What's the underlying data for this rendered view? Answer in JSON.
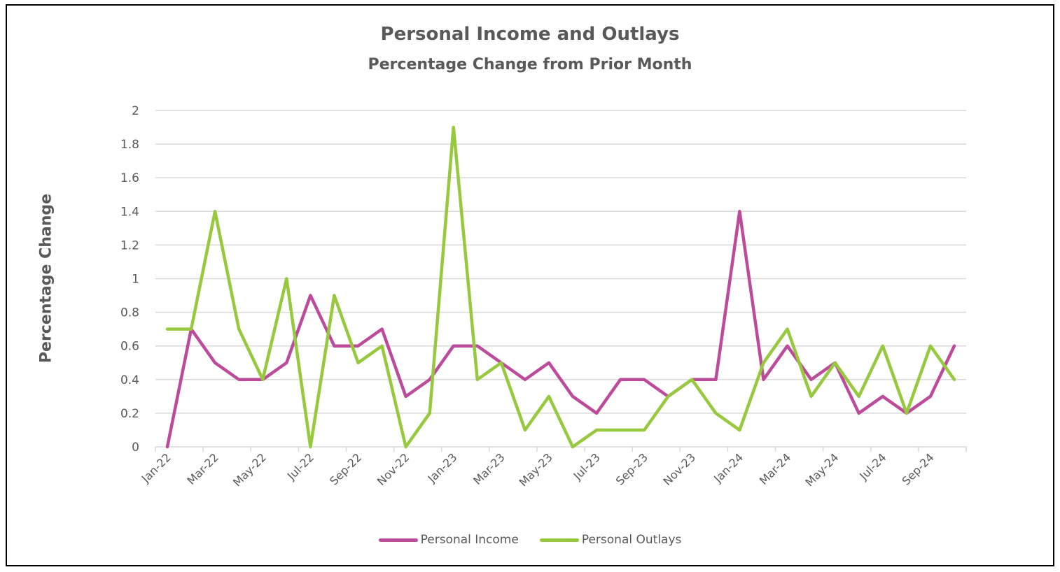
{
  "chart_data": {
    "type": "line",
    "title": "Personal Income and Outlays",
    "subtitle": "Percentage Change from Prior Month",
    "xlabel": "",
    "ylabel": "Percentage Change",
    "ylim": [
      0,
      2
    ],
    "yticks": [
      "0",
      "0.2",
      "0.4",
      "0.6",
      "0.8",
      "1",
      "1.2",
      "1.4",
      "1.6",
      "1.8",
      "2"
    ],
    "grid": true,
    "legend_position": "bottom",
    "categories": [
      "Jan-22",
      "Feb-22",
      "Mar-22",
      "Apr-22",
      "May-22",
      "Jun-22",
      "Jul-22",
      "Aug-22",
      "Sep-22",
      "Oct-22",
      "Nov-22",
      "Dec-22",
      "Jan-23",
      "Feb-23",
      "Mar-23",
      "Apr-23",
      "May-23",
      "Jun-23",
      "Jul-23",
      "Aug-23",
      "Sep-23",
      "Oct-23",
      "Nov-23",
      "Dec-23",
      "Jan-24",
      "Feb-24",
      "Mar-24",
      "Apr-24",
      "May-24",
      "Jun-24",
      "Jul-24",
      "Aug-24",
      "Sep-24",
      "Oct-24"
    ],
    "xtick_labels": [
      "Jan-22",
      "Mar-22",
      "May-22",
      "Jul-22",
      "Sep-22",
      "Nov-22",
      "Jan-23",
      "Mar-23",
      "May-23",
      "Jul-23",
      "Sep-23",
      "Nov-23",
      "Jan-24",
      "Mar-24",
      "May-24",
      "Jul-24",
      "Sep-24"
    ],
    "series": [
      {
        "name": "Personal Income",
        "color": "#BD4B9C",
        "values": [
          0,
          0.7,
          0.5,
          0.4,
          0.4,
          0.5,
          0.9,
          0.6,
          0.6,
          0.7,
          0.3,
          0.4,
          0.6,
          0.6,
          0.5,
          0.4,
          0.5,
          0.3,
          0.2,
          0.4,
          0.4,
          0.3,
          0.4,
          0.4,
          1.4,
          0.4,
          0.6,
          0.4,
          0.5,
          0.2,
          0.3,
          0.2,
          0.3,
          0.6
        ]
      },
      {
        "name": "Personal Outlays",
        "color": "#96C93D",
        "values": [
          0.7,
          0.7,
          1.4,
          0.7,
          0.4,
          1.0,
          0,
          0.9,
          0.5,
          0.6,
          0,
          0.2,
          1.9,
          0.4,
          0.5,
          0.1,
          0.3,
          0,
          0.1,
          0.1,
          0.1,
          0.3,
          0.4,
          0.2,
          0.1,
          0.5,
          0.7,
          0.3,
          0.5,
          0.3,
          0.6,
          0.2,
          0.6,
          0.4
        ]
      }
    ]
  },
  "legend": {
    "income_label": "Personal Income",
    "outlays_label": "Personal Outlays"
  }
}
